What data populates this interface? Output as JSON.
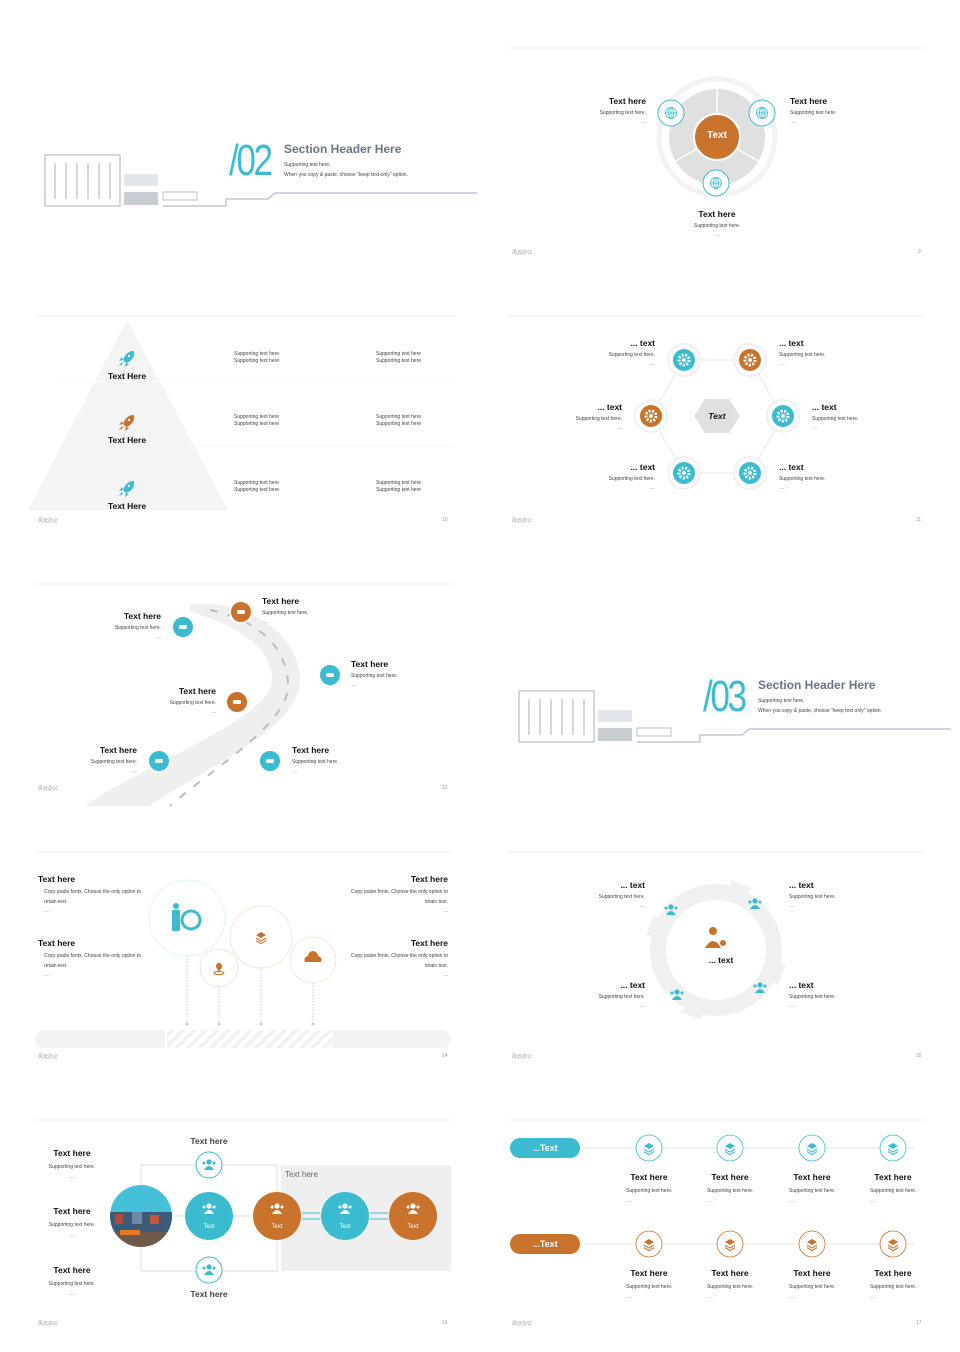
{
  "footer_brand": "风云办公",
  "colors": {
    "teal": "#3bbbd0",
    "orange": "#c8722c",
    "grey": "#e0e0e0",
    "line": "#b8bec8"
  },
  "s02": {
    "number": "/02",
    "title": "Section Header Here",
    "sub1": "Supporting text here.",
    "sub2": "When you copy & paste, choose \"keep text only\" option."
  },
  "s9": {
    "page": "9",
    "center": "Text",
    "items": [
      {
        "title": "Text here",
        "sub": "Supporting text here.",
        "dots": "......"
      },
      {
        "title": "Text here",
        "sub": "Supporting text here.",
        "dots": "......"
      },
      {
        "title": "Text here",
        "sub": "Supporting text here.",
        "dots": "......"
      }
    ],
    "icon": "globe-icon"
  },
  "s10": {
    "page": "10",
    "levels": [
      {
        "title": "Text Here",
        "b": [
          "Supporting text here",
          "Supporting text here",
          "Supporting text here",
          "Supporting text here"
        ]
      },
      {
        "title": "Text Here",
        "b": [
          "Supporting text here",
          "Supporting text here",
          "Supporting text here",
          "Supporting text here"
        ]
      },
      {
        "title": "Text Here",
        "b": [
          "Supporting text here",
          "Supporting text here",
          "Supporting text here",
          "Supporting text here"
        ]
      }
    ],
    "icon": "rocket-icon"
  },
  "s11": {
    "page": "11",
    "center": "Text",
    "items": [
      {
        "title": "... text",
        "sub": "Supporting text here.",
        "dots": "......"
      },
      {
        "title": "... text",
        "sub": "Supporting text here.",
        "dots": "......"
      },
      {
        "title": "... text",
        "sub": "Supporting text here.",
        "dots": "......"
      },
      {
        "title": "... text",
        "sub": "Supporting text here.",
        "dots": "......"
      },
      {
        "title": "... text",
        "sub": "Supporting text here.",
        "dots": "......"
      },
      {
        "title": "... text",
        "sub": "Supporting text here.",
        "dots": "......"
      }
    ],
    "icon": "gear-icon"
  },
  "s12": {
    "page": "12",
    "items": [
      {
        "title": "Text here",
        "sub": "Supporting text here.",
        "dots": "......"
      },
      {
        "title": "Text here",
        "sub": "Supporting text here.",
        "dots": "......"
      },
      {
        "title": "Text here",
        "sub": "Supporting text here.",
        "dots": "......"
      },
      {
        "title": "Text here",
        "sub": "Supporting text here.",
        "dots": "......"
      },
      {
        "title": "Text here",
        "sub": "Supporting text here.",
        "dots": "......"
      },
      {
        "title": "Text here",
        "sub": "Supporting text here.",
        "dots": "......"
      }
    ],
    "icon": "car-icon"
  },
  "s03": {
    "number": "/03",
    "title": "Section Header Here",
    "sub1": "Supporting text here.",
    "sub2": "When you copy & paste, choose \"keep text only\" option."
  },
  "s14": {
    "page": "14",
    "items": [
      {
        "title": "Text here",
        "l1": "Copy paste fonts. Choose the only option to",
        "l2": "retain text.",
        "dots": "......"
      },
      {
        "title": "Text here",
        "l1": "Copy paste fonts. Choose the only option to",
        "l2": "retain text.",
        "dots": "......"
      },
      {
        "title": "Text here",
        "l1": "Copy paste fonts. Choose the only option to",
        "l2": "retain text.",
        "dots": "......"
      },
      {
        "title": "Text here",
        "l1": "Copy paste fonts. Choose the only option to",
        "l2": "retain text.",
        "dots": "......"
      }
    ]
  },
  "s15": {
    "page": "15",
    "center": "... text",
    "items": [
      {
        "title": "... text",
        "sub": "Supporting text here.",
        "dots": "......"
      },
      {
        "title": "... text",
        "sub": "Supporting text here.",
        "dots": "......"
      },
      {
        "title": "... text",
        "sub": "Supporting text here.",
        "dots": "......"
      },
      {
        "title": "... text",
        "sub": "Supporting text here.",
        "dots": "......"
      }
    ]
  },
  "s16": {
    "page": "16",
    "left": [
      {
        "title": "Text here",
        "sub": "Supporting text here.",
        "dots": "......"
      },
      {
        "title": "Text here",
        "sub": "Supporting text here.",
        "dots": "......"
      },
      {
        "title": "Text here",
        "sub": "Supporting text here.",
        "dots": "......"
      }
    ],
    "top_label": "Text here",
    "bottom_label": "Text here",
    "box_label": "Text here",
    "nodes": [
      "Text",
      "Text",
      "Text",
      "Text"
    ]
  },
  "s17": {
    "page": "17",
    "rows": [
      {
        "pill": "...Text",
        "items": [
          {
            "title": "Text here",
            "sub": "Supporting text here.",
            "dots": "......"
          },
          {
            "title": "Text here",
            "sub": "Supporting text here.",
            "dots": "......"
          },
          {
            "title": "Text here",
            "sub": "Supporting text here.",
            "dots": "......"
          },
          {
            "title": "Text here",
            "sub": "Supporting text here.",
            "dots": "......"
          }
        ]
      },
      {
        "pill": "...Text",
        "items": [
          {
            "title": "Text here",
            "sub": "Supporting text here.",
            "dots": "......"
          },
          {
            "title": "Text here",
            "sub": "Supporting text here.",
            "dots": "......"
          },
          {
            "title": "Text here",
            "sub": "Supporting text here.",
            "dots": "......"
          },
          {
            "title": "Text here",
            "sub": "Supporting text here.",
            "dots": "......"
          }
        ]
      }
    ]
  }
}
